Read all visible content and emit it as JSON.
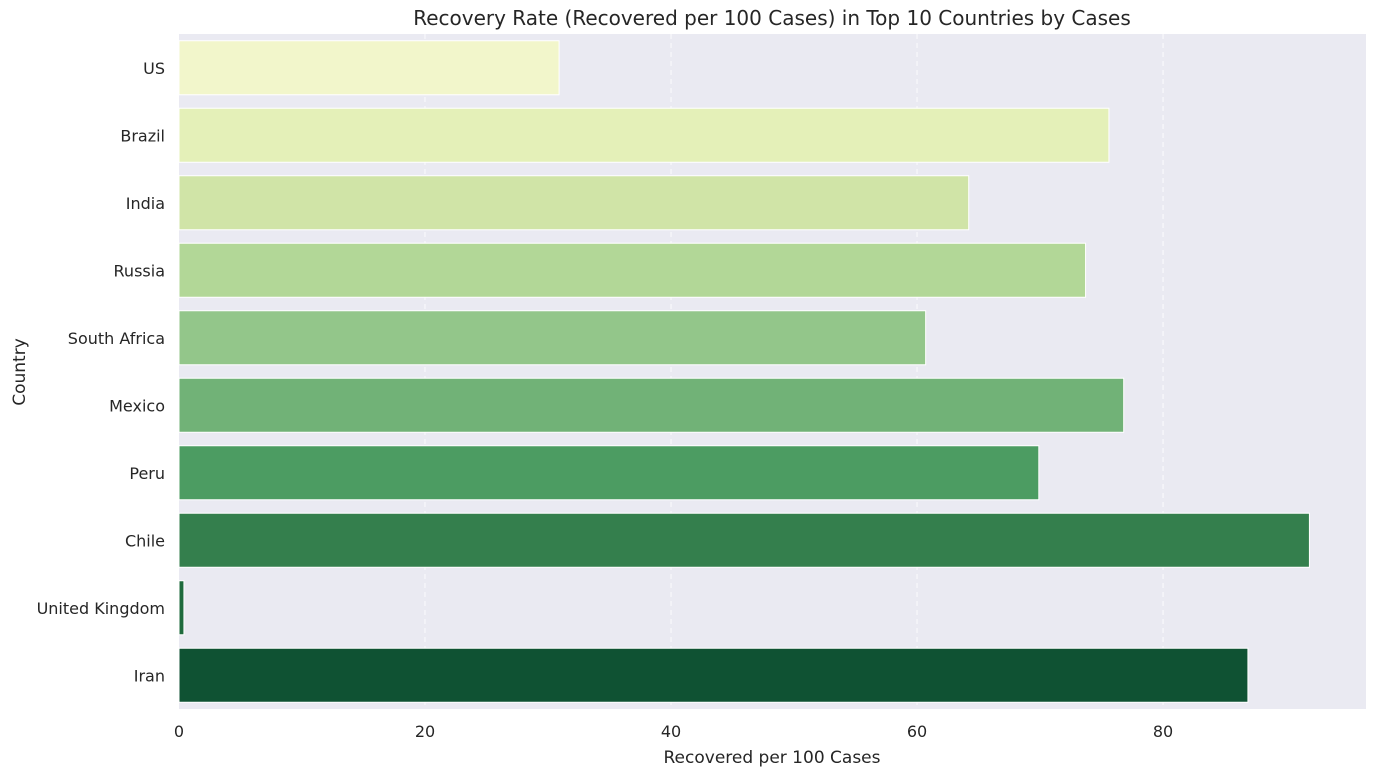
{
  "chart_data": {
    "type": "bar",
    "orientation": "horizontal",
    "title": "Recovery Rate (Recovered per 100 Cases) in Top 10 Countries by Cases",
    "xlabel": "Recovered per 100 Cases",
    "ylabel": "Country",
    "categories": [
      "US",
      "Brazil",
      "India",
      "Russia",
      "South Africa",
      "Mexico",
      "Peru",
      "Chile",
      "United Kingdom",
      "Iran"
    ],
    "values": [
      30.9,
      75.6,
      64.2,
      73.7,
      60.7,
      76.8,
      69.9,
      91.9,
      0.4,
      86.9
    ],
    "xlim": [
      0,
      96.5
    ],
    "xticks": [
      0,
      20,
      40,
      60,
      80
    ],
    "grid": "x-dashed",
    "colors": [
      "#f2f6cb",
      "#e4f0b8",
      "#d0e4a7",
      "#b2d797",
      "#93c68a",
      "#71b277",
      "#4c9c62",
      "#347f4d",
      "#1f6b3d",
      "#0f5233"
    ],
    "plot_background": "#eaeaf2"
  }
}
